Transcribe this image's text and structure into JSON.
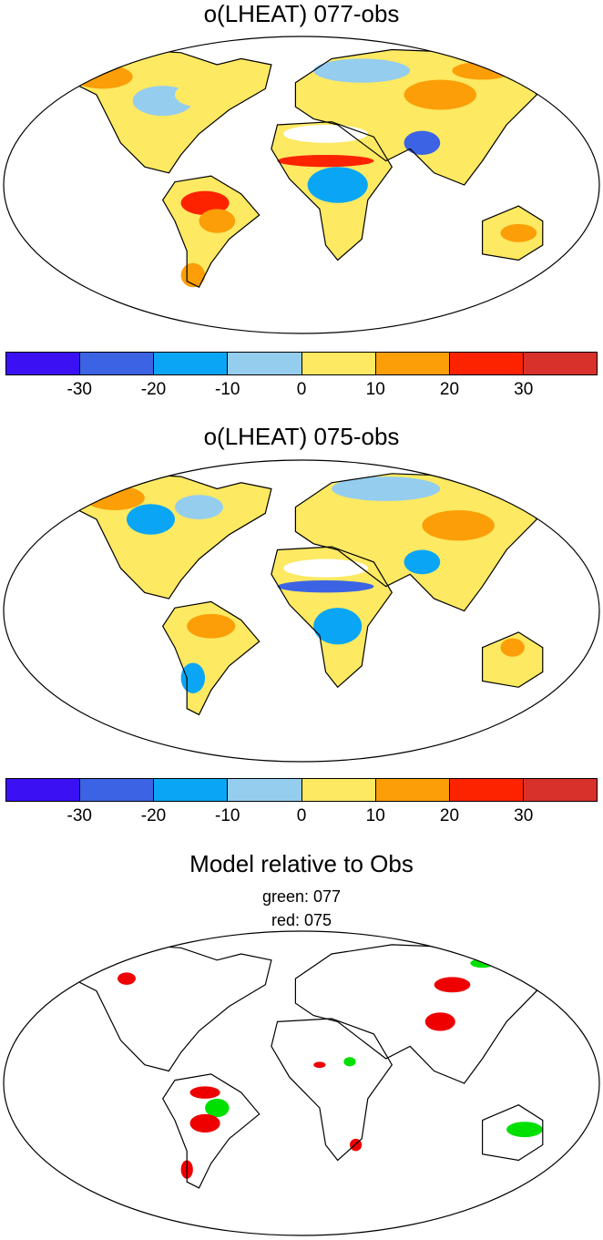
{
  "panels": [
    {
      "title": "o(LHEAT) 077-obs"
    },
    {
      "title": "o(LHEAT) 075-obs"
    }
  ],
  "colorbar": {
    "colors": [
      "#3b10f2",
      "#3c63e4",
      "#0aa6f5",
      "#95cdef",
      "#fde962",
      "#fb9e08",
      "#fd2200",
      "#d8302a"
    ],
    "labels": [
      "-30",
      "-20",
      "-10",
      "0",
      "10",
      "20",
      "30"
    ]
  },
  "comparison": {
    "title": "Model relative to Obs",
    "legend_green": "green: 077",
    "legend_red": "red: 075",
    "green_color": "#00e000",
    "red_color": "#ee0000"
  }
}
